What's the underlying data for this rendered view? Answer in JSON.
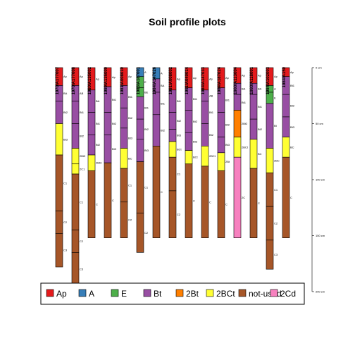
{
  "chart_data": {
    "type": "soil-profile",
    "title": "Soil profile plots",
    "depth_axis": {
      "ticks": [
        0,
        50,
        100,
        150,
        200
      ],
      "unit": "cm",
      "range": [
        0,
        200
      ]
    },
    "colors": {
      "Ap": "#e41a1c",
      "A": "#377eb8",
      "E": "#4daf4a",
      "Bt": "#984ea3",
      "2Bt": "#ff7f00",
      "2BCt": "#ffff33",
      "not-used": "#a65628",
      "2Cd": "#f781bf"
    },
    "legend": [
      "Ap",
      "A",
      "E",
      "Bt",
      "2Bt",
      "2BCt",
      "not-used",
      "2Cd"
    ],
    "profiles": [
      {
        "id": "1970IA177007",
        "horizons": [
          {
            "name": "Ap",
            "top": 0,
            "bottom": 16,
            "group": "Ap"
          },
          {
            "name": "BA",
            "top": 16,
            "bottom": 30,
            "group": "Bt"
          },
          {
            "name": "Bt2",
            "top": 30,
            "bottom": 50,
            "group": "Bt"
          },
          {
            "name": "Bt3",
            "top": 50,
            "bottom": 78,
            "group": "2BCt"
          },
          {
            "name": "C1",
            "top": 78,
            "bottom": 128,
            "group": "not-used"
          },
          {
            "name": "C2",
            "top": 128,
            "bottom": 148,
            "group": "not-used"
          },
          {
            "name": "C3",
            "top": 148,
            "bottom": 178,
            "group": "not-used"
          }
        ]
      },
      {
        "id": "1970IA177008",
        "horizons": [
          {
            "name": "Ap",
            "top": 0,
            "bottom": 16,
            "group": "Ap"
          },
          {
            "name": "AB",
            "top": 16,
            "bottom": 30,
            "group": "Bt"
          },
          {
            "name": "Bt1",
            "top": 30,
            "bottom": 50,
            "group": "Bt"
          },
          {
            "name": "Bt2",
            "top": 50,
            "bottom": 72,
            "group": "Bt"
          },
          {
            "name": "2Bt3",
            "top": 72,
            "bottom": 86,
            "group": "2BCt"
          },
          {
            "name": "2C1",
            "top": 86,
            "bottom": 95,
            "group": "2BCt"
          },
          {
            "name": "C1",
            "top": 95,
            "bottom": 145,
            "group": "not-used"
          },
          {
            "name": "C2",
            "top": 145,
            "bottom": 165,
            "group": "not-used"
          },
          {
            "name": "C3",
            "top": 165,
            "bottom": 195,
            "group": "not-used"
          }
        ]
      },
      {
        "id": "1980IA135002",
        "horizons": [
          {
            "name": "Ap",
            "top": 0,
            "bottom": 20,
            "group": "Ap"
          },
          {
            "name": "BA",
            "top": 20,
            "bottom": 40,
            "group": "Bt"
          },
          {
            "name": "Bt1",
            "top": 40,
            "bottom": 60,
            "group": "Bt"
          },
          {
            "name": "Bt2",
            "top": 60,
            "bottom": 78,
            "group": "Bt"
          },
          {
            "name": "2Bt3",
            "top": 78,
            "bottom": 92,
            "group": "2BCt"
          },
          {
            "name": "C",
            "top": 92,
            "bottom": 152,
            "group": "not-used"
          }
        ]
      },
      {
        "id": "1980IA135009",
        "horizons": [
          {
            "name": "Ap",
            "top": 0,
            "bottom": 17,
            "group": "Ap"
          },
          {
            "name": "Bt1",
            "top": 17,
            "bottom": 40,
            "group": "Bt"
          },
          {
            "name": "Bt2",
            "top": 40,
            "bottom": 60,
            "group": "Bt"
          },
          {
            "name": "Bt3",
            "top": 60,
            "bottom": 85,
            "group": "Bt"
          },
          {
            "name": "C",
            "top": 85,
            "bottom": 152,
            "group": "not-used"
          }
        ]
      },
      {
        "id": "1981IA008010",
        "horizons": [
          {
            "name": "Ap",
            "top": 0,
            "bottom": 16,
            "group": "Ap"
          },
          {
            "name": "Bt1",
            "top": 16,
            "bottom": 36,
            "group": "Bt"
          },
          {
            "name": "Bt2",
            "top": 36,
            "bottom": 54,
            "group": "Bt"
          },
          {
            "name": "Bt3",
            "top": 54,
            "bottom": 72,
            "group": "Bt"
          },
          {
            "name": "BC",
            "top": 72,
            "bottom": 90,
            "group": "2BCt"
          },
          {
            "name": "C1",
            "top": 90,
            "bottom": 120,
            "group": "not-used"
          },
          {
            "name": "C2",
            "top": 120,
            "bottom": 152,
            "group": "not-used"
          }
        ]
      },
      {
        "id": "1983IA187001",
        "horizons": [
          {
            "name": "A",
            "top": 0,
            "bottom": 8,
            "group": "A"
          },
          {
            "name": "E",
            "top": 8,
            "bottom": 18,
            "group": "E"
          },
          {
            "name": "BE",
            "top": 18,
            "bottom": 26,
            "group": "E"
          },
          {
            "name": "Bt1",
            "top": 26,
            "bottom": 46,
            "group": "Bt"
          },
          {
            "name": "Bt2",
            "top": 46,
            "bottom": 64,
            "group": "Bt"
          },
          {
            "name": "Bt3",
            "top": 64,
            "bottom": 84,
            "group": "Bt"
          },
          {
            "name": "C1",
            "top": 84,
            "bottom": 130,
            "group": "not-used"
          },
          {
            "name": "C2",
            "top": 130,
            "bottom": 165,
            "group": "not-used"
          }
        ]
      },
      {
        "id": "1984IA147026",
        "horizons": [
          {
            "name": "A",
            "top": 0,
            "bottom": 10,
            "group": "A"
          },
          {
            "name": "BA",
            "top": 10,
            "bottom": 22,
            "group": "Bt"
          },
          {
            "name": "Bt1",
            "top": 22,
            "bottom": 42,
            "group": "Bt"
          },
          {
            "name": "Bt2",
            "top": 42,
            "bottom": 70,
            "group": "Bt"
          },
          {
            "name": "C",
            "top": 70,
            "bottom": 152,
            "group": "not-used"
          }
        ]
      },
      {
        "id": "1991IA008002",
        "horizons": [
          {
            "name": "Ap",
            "top": 0,
            "bottom": 20,
            "group": "Ap"
          },
          {
            "name": "Bt1",
            "top": 20,
            "bottom": 40,
            "group": "Bt"
          },
          {
            "name": "Bt2",
            "top": 40,
            "bottom": 55,
            "group": "Bt"
          },
          {
            "name": "Bt3",
            "top": 55,
            "bottom": 66,
            "group": "Bt"
          },
          {
            "name": "BCt",
            "top": 66,
            "bottom": 80,
            "group": "2BCt"
          },
          {
            "name": "C1",
            "top": 80,
            "bottom": 110,
            "group": "not-used"
          },
          {
            "name": "C2",
            "top": 110,
            "bottom": 152,
            "group": "not-used"
          }
        ]
      },
      {
        "id": "1991IA040014",
        "horizons": [
          {
            "name": "Ap",
            "top": 0,
            "bottom": 18,
            "group": "Ap"
          },
          {
            "name": "Bt1",
            "top": 18,
            "bottom": 38,
            "group": "Bt"
          },
          {
            "name": "Bt2",
            "top": 38,
            "bottom": 58,
            "group": "Bt"
          },
          {
            "name": "Bt3",
            "top": 58,
            "bottom": 74,
            "group": "Bt"
          },
          {
            "name": "BCt",
            "top": 74,
            "bottom": 86,
            "group": "2BCt"
          },
          {
            "name": "C",
            "top": 86,
            "bottom": 152,
            "group": "not-used"
          }
        ]
      },
      {
        "id": "1984IA147033",
        "horizons": [
          {
            "name": "Ap",
            "top": 0,
            "bottom": 20,
            "group": "Ap"
          },
          {
            "name": "AB",
            "top": 20,
            "bottom": 30,
            "group": "Bt"
          },
          {
            "name": "Bt1",
            "top": 30,
            "bottom": 50,
            "group": "Bt"
          },
          {
            "name": "Bt2",
            "top": 50,
            "bottom": 70,
            "group": "Bt"
          },
          {
            "name": "2BCt",
            "top": 70,
            "bottom": 88,
            "group": "2BCt"
          },
          {
            "name": "C",
            "top": 88,
            "bottom": 152,
            "group": "not-used"
          }
        ]
      },
      {
        "id": "1984IA187024",
        "horizons": [
          {
            "name": "Ap",
            "top": 0,
            "bottom": 18,
            "group": "Ap"
          },
          {
            "name": "Bt1",
            "top": 18,
            "bottom": 40,
            "group": "Bt"
          },
          {
            "name": "Bt2",
            "top": 40,
            "bottom": 62,
            "group": "Bt"
          },
          {
            "name": "Bt3",
            "top": 62,
            "bottom": 76,
            "group": "Bt"
          },
          {
            "name": "2Bt",
            "top": 76,
            "bottom": 92,
            "group": "2BCt"
          },
          {
            "name": "C",
            "top": 92,
            "bottom": 152,
            "group": "not-used"
          }
        ]
      },
      {
        "id": "1980IA113004",
        "horizons": [
          {
            "name": "Ap",
            "top": 0,
            "bottom": 14,
            "group": "Ap"
          },
          {
            "name": "BA",
            "top": 14,
            "bottom": 24,
            "group": "Bt"
          },
          {
            "name": "Bt1",
            "top": 24,
            "bottom": 38,
            "group": "Bt"
          },
          {
            "name": "2Bt2",
            "top": 38,
            "bottom": 62,
            "group": "2Bt"
          },
          {
            "name": "2BCt",
            "top": 62,
            "bottom": 80,
            "group": "2BCt"
          },
          {
            "name": "2C",
            "top": 80,
            "bottom": 152,
            "group": "2Cd"
          }
        ]
      },
      {
        "id": "1980IA118001",
        "horizons": [
          {
            "name": "Ap",
            "top": 0,
            "bottom": 14,
            "group": "Ap"
          },
          {
            "name": "BA",
            "top": 14,
            "bottom": 24,
            "group": "Bt"
          },
          {
            "name": "Bt1",
            "top": 24,
            "bottom": 46,
            "group": "Bt"
          },
          {
            "name": "Bt2",
            "top": 46,
            "bottom": 64,
            "group": "Bt"
          },
          {
            "name": "BC",
            "top": 64,
            "bottom": 90,
            "group": "2BCt"
          },
          {
            "name": "C",
            "top": 90,
            "bottom": 152,
            "group": "not-used"
          }
        ]
      },
      {
        "id": "1984IA102003",
        "horizons": [
          {
            "name": "Ap",
            "top": 0,
            "bottom": 16,
            "group": "Ap"
          },
          {
            "name": "A",
            "top": 16,
            "bottom": 22,
            "group": "E"
          },
          {
            "name": "E",
            "top": 22,
            "bottom": 32,
            "group": "E"
          },
          {
            "name": "Bt",
            "top": 32,
            "bottom": 72,
            "group": "Bt"
          },
          {
            "name": "2BC",
            "top": 72,
            "bottom": 94,
            "group": "2BCt"
          },
          {
            "name": "C1",
            "top": 94,
            "bottom": 124,
            "group": "not-used"
          },
          {
            "name": "C2",
            "top": 124,
            "bottom": 154,
            "group": "not-used"
          },
          {
            "name": "C3",
            "top": 154,
            "bottom": 180,
            "group": "not-used"
          }
        ]
      },
      {
        "id": "1984IA150",
        "horizons": [
          {
            "name": "Ap",
            "top": 0,
            "bottom": 8,
            "group": "Ap"
          },
          {
            "name": "Bt1",
            "top": 8,
            "bottom": 24,
            "group": "Bt"
          },
          {
            "name": "Bt2",
            "top": 24,
            "bottom": 44,
            "group": "Bt"
          },
          {
            "name": "Bt3",
            "top": 44,
            "bottom": 62,
            "group": "Bt"
          },
          {
            "name": "BC",
            "top": 62,
            "bottom": 80,
            "group": "2BCt"
          },
          {
            "name": "C",
            "top": 80,
            "bottom": 152,
            "group": "not-used"
          }
        ]
      }
    ]
  }
}
